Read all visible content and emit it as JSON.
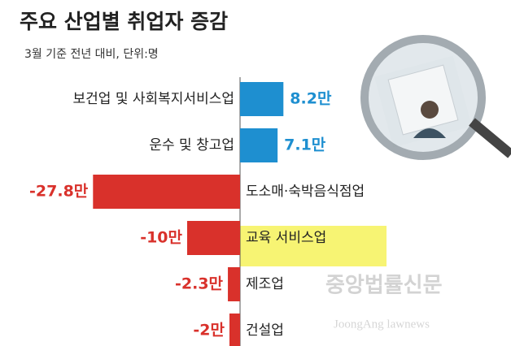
{
  "chart_data": {
    "type": "bar",
    "orientation": "horizontal",
    "title": "주요 산업별 취업자 증감",
    "subtitle": "3월 기준 전년 대비, 단위:명",
    "categories": [
      "보건업 및 사회복지서비스업",
      "운수 및 창고업",
      "도소매·숙박음식점업",
      "교육 서비스업",
      "제조업",
      "건설업"
    ],
    "values": [
      8.2,
      7.1,
      -27.8,
      -10,
      -2.3,
      -2
    ],
    "value_labels": [
      "8.2만",
      "7.1만",
      "-27.8만",
      "-10만",
      "-2.3만",
      "-2만"
    ],
    "positive_color": "#1e8fd0",
    "negative_color": "#d9312b",
    "watermark": "중앙법률신문",
    "watermark_sub": "JoongAng lawnews"
  }
}
